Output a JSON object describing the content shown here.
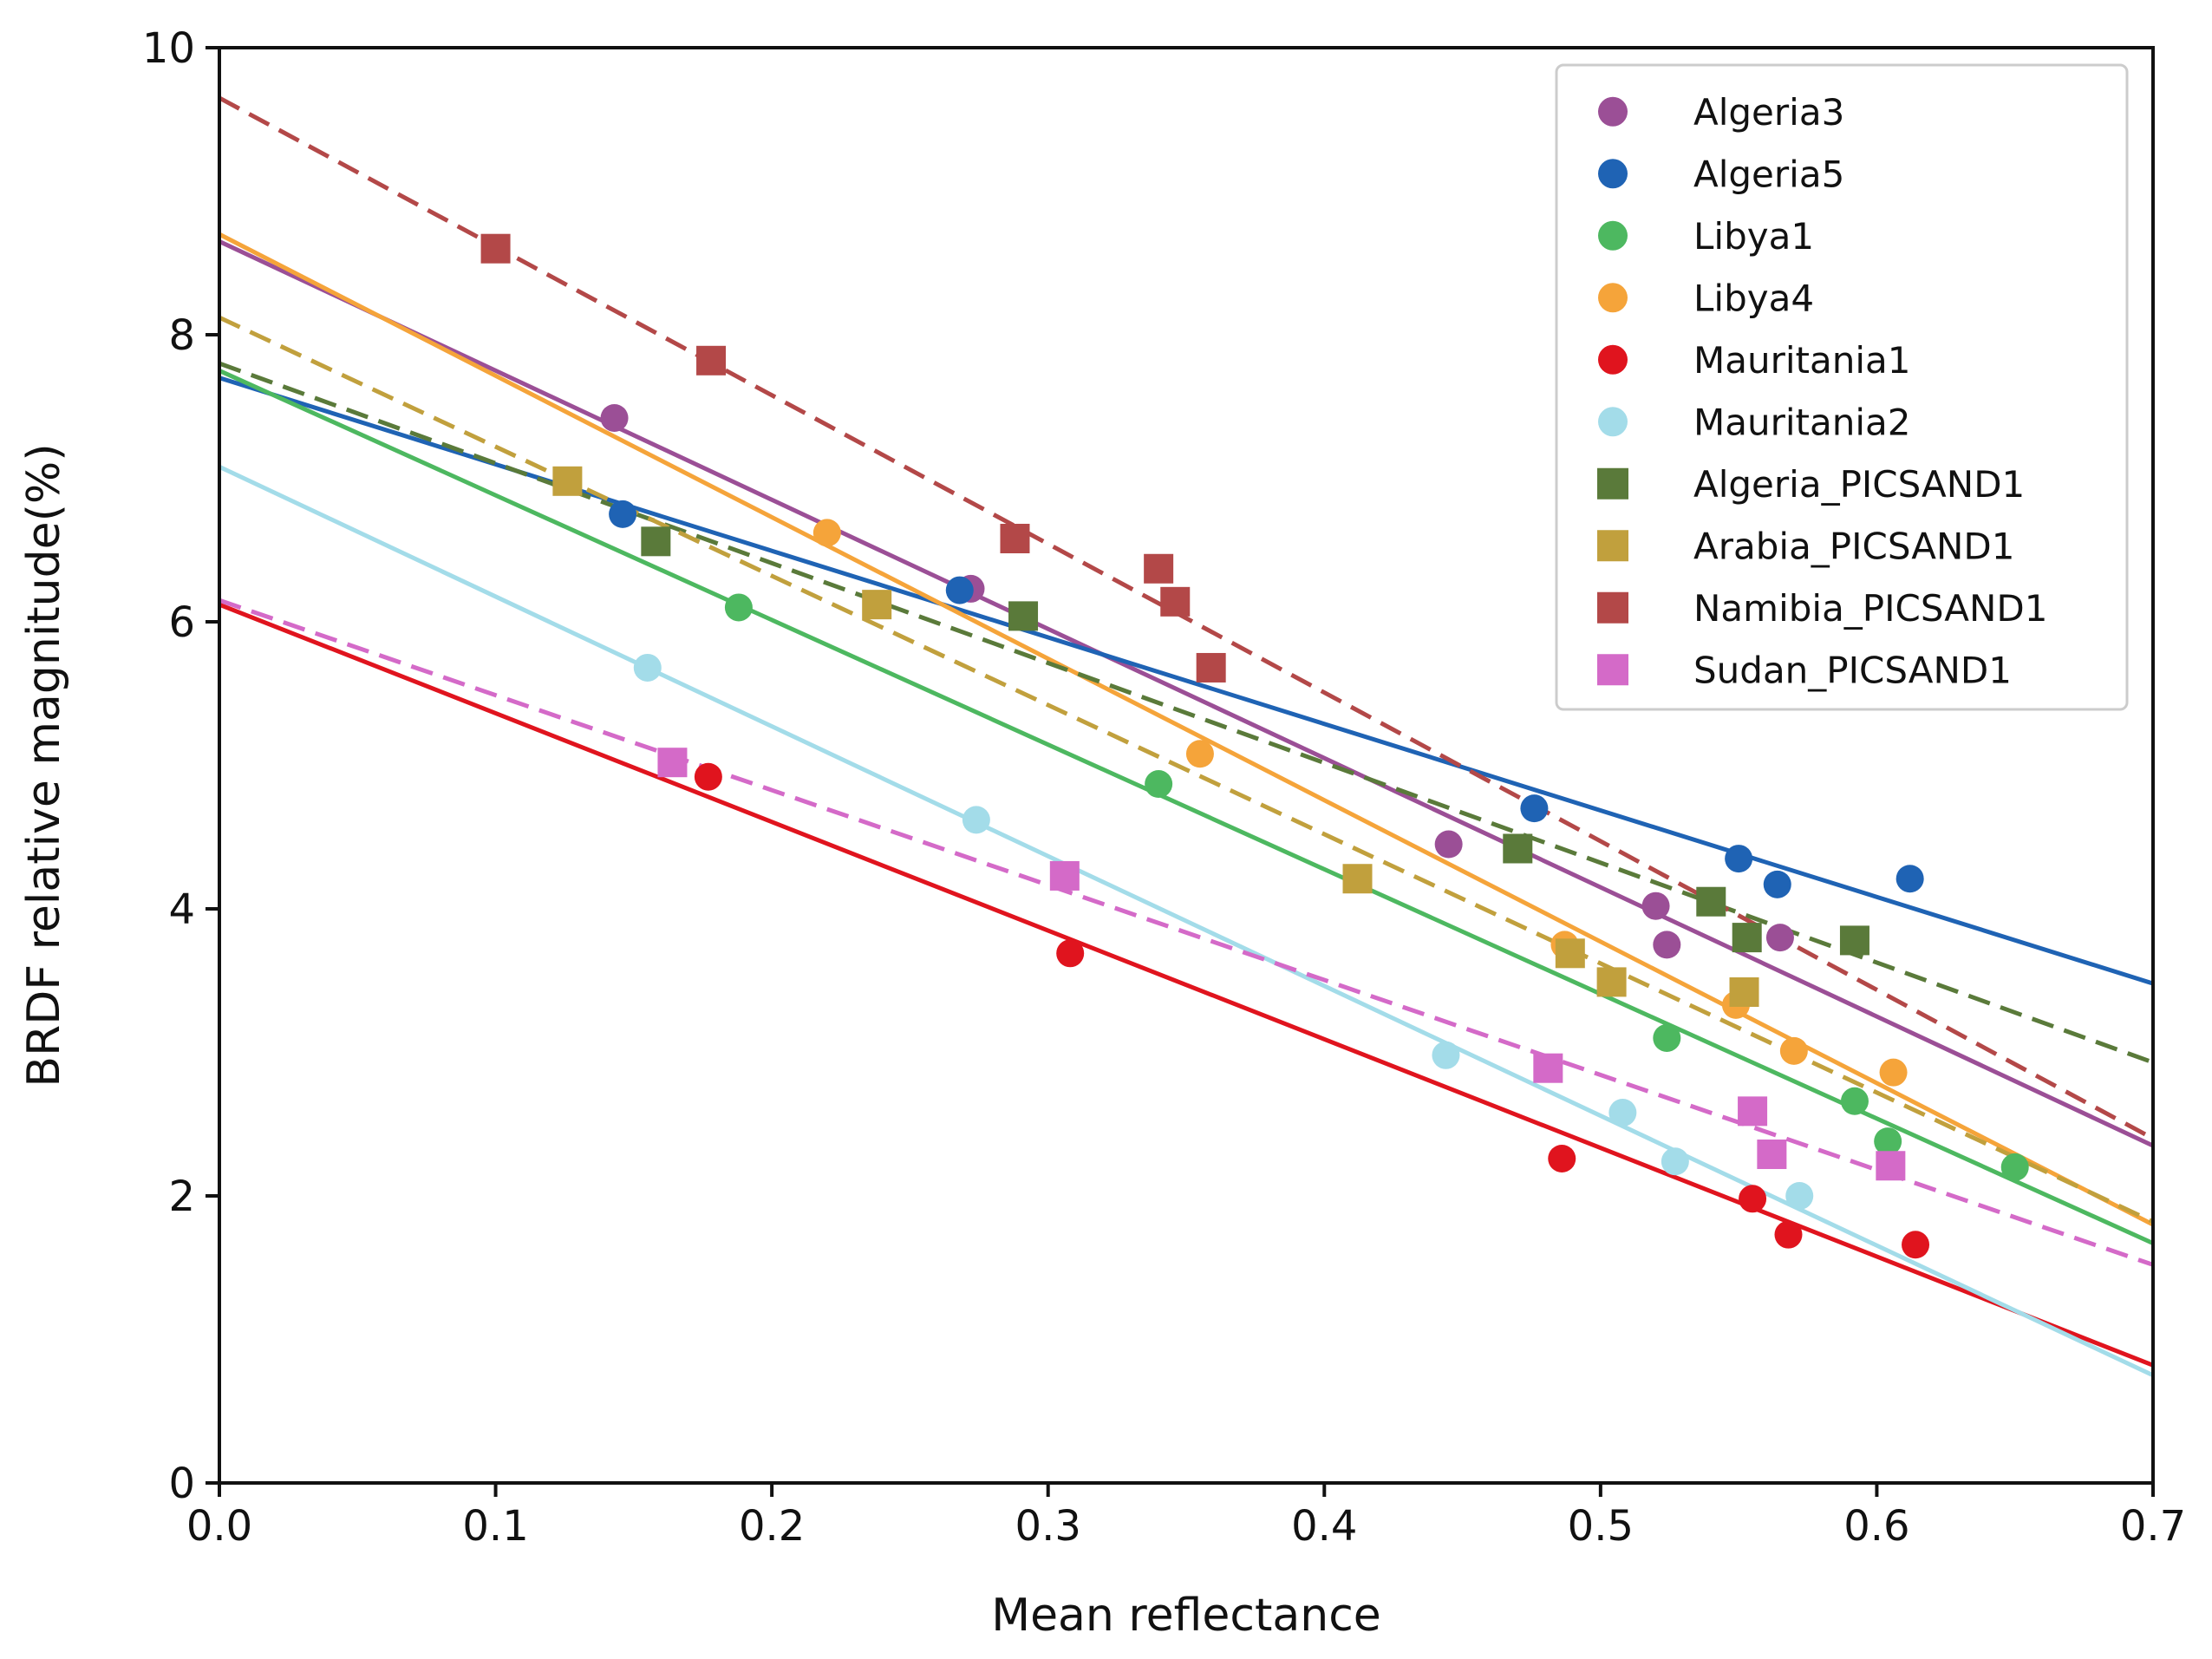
{
  "chart_data": {
    "type": "scatter",
    "title": "",
    "xlabel": "Mean reflectance",
    "ylabel": "BRDF relative magnitude(%)",
    "xlim": [
      0.0,
      0.7
    ],
    "ylim": [
      0,
      10
    ],
    "xticks": [
      "0.0",
      "0.1",
      "0.2",
      "0.3",
      "0.4",
      "0.5",
      "0.6",
      "0.7"
    ],
    "yticks": [
      "0",
      "2",
      "4",
      "6",
      "8",
      "10"
    ],
    "grid": false,
    "legend_position": "top-right",
    "series": [
      {
        "name": "Algeria3",
        "marker": "circle",
        "line": "solid",
        "color": "#9b4f96",
        "points": [
          [
            0.143,
            7.42
          ],
          [
            0.272,
            6.23
          ],
          [
            0.445,
            4.45
          ],
          [
            0.52,
            4.02
          ],
          [
            0.524,
            3.75
          ],
          [
            0.565,
            3.8
          ]
        ],
        "fit": [
          [
            0.0,
            8.65
          ],
          [
            0.7,
            2.35
          ]
        ]
      },
      {
        "name": "Algeria5",
        "marker": "circle",
        "line": "solid",
        "color": "#1f63b4",
        "points": [
          [
            0.146,
            6.75
          ],
          [
            0.268,
            6.22
          ],
          [
            0.476,
            4.7
          ],
          [
            0.55,
            4.35
          ],
          [
            0.564,
            4.17
          ],
          [
            0.612,
            4.21
          ]
        ],
        "fit": [
          [
            0.0,
            7.7
          ],
          [
            0.7,
            3.48
          ]
        ]
      },
      {
        "name": "Libya1",
        "marker": "circle",
        "line": "solid",
        "color": "#4db860",
        "points": [
          [
            0.188,
            6.1
          ],
          [
            0.34,
            4.87
          ],
          [
            0.524,
            3.1
          ],
          [
            0.592,
            2.66
          ],
          [
            0.604,
            2.38
          ],
          [
            0.65,
            2.2
          ]
        ],
        "fit": [
          [
            0.0,
            7.75
          ],
          [
            0.7,
            1.67
          ]
        ]
      },
      {
        "name": "Libya4",
        "marker": "circle",
        "line": "solid",
        "color": "#f5a43a",
        "points": [
          [
            0.22,
            6.62
          ],
          [
            0.355,
            5.08
          ],
          [
            0.487,
            3.75
          ],
          [
            0.549,
            3.33
          ],
          [
            0.57,
            3.01
          ],
          [
            0.606,
            2.86
          ]
        ],
        "fit": [
          [
            0.0,
            8.7
          ],
          [
            0.7,
            1.8
          ]
        ]
      },
      {
        "name": "Mauritania1",
        "marker": "circle",
        "line": "solid",
        "color": "#e0141e",
        "points": [
          [
            0.177,
            4.92
          ],
          [
            0.308,
            3.69
          ],
          [
            0.486,
            2.26
          ],
          [
            0.555,
            1.98
          ],
          [
            0.568,
            1.73
          ],
          [
            0.614,
            1.66
          ]
        ],
        "fit": [
          [
            0.0,
            6.12
          ],
          [
            0.7,
            0.82
          ]
        ]
      },
      {
        "name": "Mauritania2",
        "marker": "circle",
        "line": "solid",
        "color": "#a3dce9",
        "points": [
          [
            0.155,
            5.68
          ],
          [
            0.274,
            4.62
          ],
          [
            0.444,
            2.98
          ],
          [
            0.508,
            2.58
          ],
          [
            0.527,
            2.24
          ],
          [
            0.572,
            2.0
          ]
        ],
        "fit": [
          [
            0.0,
            7.08
          ],
          [
            0.7,
            0.75
          ]
        ]
      },
      {
        "name": "Algeria_PICSAND1",
        "marker": "square",
        "line": "dashed",
        "color": "#5a7a3a",
        "points": [
          [
            0.158,
            6.56
          ],
          [
            0.291,
            6.04
          ],
          [
            0.47,
            4.42
          ],
          [
            0.54,
            4.05
          ],
          [
            0.553,
            3.8
          ],
          [
            0.592,
            3.78
          ]
        ],
        "fit": [
          [
            0.0,
            7.8
          ],
          [
            0.7,
            2.93
          ]
        ]
      },
      {
        "name": "Arabia_PICSAND1",
        "marker": "square",
        "line": "dashed",
        "color": "#c1a03d",
        "points": [
          [
            0.126,
            6.98
          ],
          [
            0.238,
            6.12
          ],
          [
            0.412,
            4.21
          ],
          [
            0.489,
            3.69
          ],
          [
            0.504,
            3.49
          ],
          [
            0.552,
            3.42
          ]
        ],
        "fit": [
          [
            0.0,
            8.12
          ],
          [
            0.7,
            1.82
          ]
        ]
      },
      {
        "name": "Namibia_PICSAND1",
        "marker": "square",
        "line": "dashed",
        "color": "#b34848",
        "points": [
          [
            0.1,
            8.6
          ],
          [
            0.178,
            7.82
          ],
          [
            0.288,
            6.58
          ],
          [
            0.34,
            6.37
          ],
          [
            0.346,
            6.14
          ],
          [
            0.359,
            5.68
          ]
        ],
        "fit": [
          [
            0.0,
            9.65
          ],
          [
            0.7,
            2.4
          ]
        ]
      },
      {
        "name": "Sudan_PICSAND1",
        "marker": "square",
        "line": "dashed",
        "color": "#d46ac8",
        "points": [
          [
            0.164,
            5.02
          ],
          [
            0.306,
            4.23
          ],
          [
            0.481,
            2.89
          ],
          [
            0.555,
            2.59
          ],
          [
            0.562,
            2.29
          ],
          [
            0.605,
            2.21
          ]
        ],
        "fit": [
          [
            0.0,
            6.15
          ],
          [
            0.7,
            1.52
          ]
        ]
      }
    ]
  }
}
